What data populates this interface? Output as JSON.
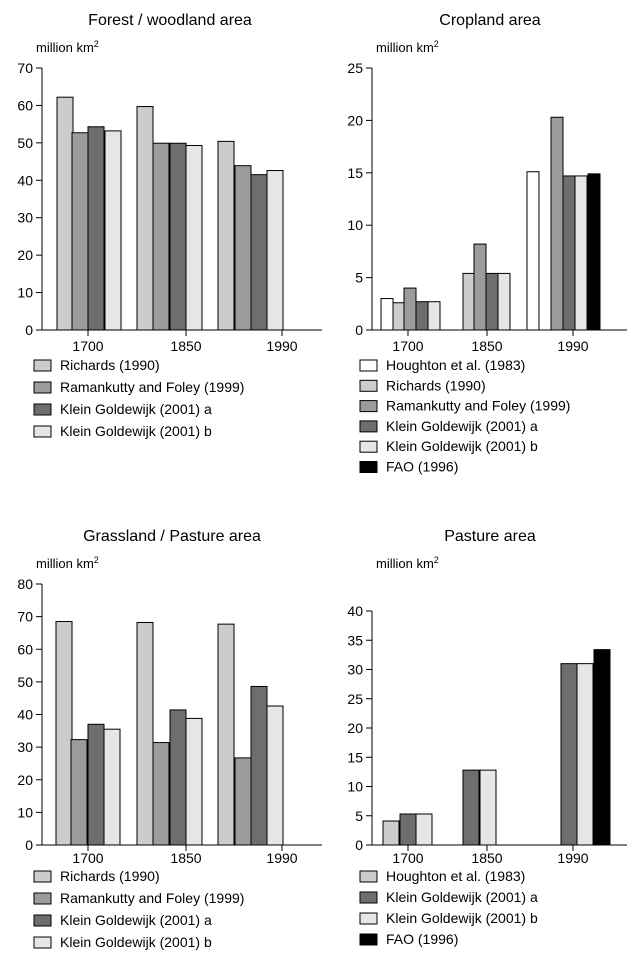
{
  "chart_data": [
    {
      "type": "bar",
      "title": "Forest / woodland area",
      "ylabel": "million km",
      "ylabel_sup": "2",
      "ylim": [
        0,
        70
      ],
      "yticks": [
        0,
        10,
        20,
        30,
        40,
        50,
        60,
        70
      ],
      "categories": [
        "1700",
        "1850",
        "1990"
      ],
      "grid": false,
      "legend_placement": "below",
      "series": [
        {
          "name": "Richards (1990)",
          "color": "#cccccc",
          "values": [
            62.2,
            59.7,
            50.4
          ]
        },
        {
          "name": "Ramankutty and Foley (1999)",
          "color": "#9c9c9c",
          "values": [
            52.7,
            49.9,
            43.9
          ]
        },
        {
          "name": "Klein Goldewijk (2001) a",
          "color": "#6e6e6e",
          "values": [
            54.3,
            49.9,
            41.5
          ]
        },
        {
          "name": "Klein Goldewijk (2001) b",
          "color": "#e6e6e6",
          "values": [
            53.2,
            49.3,
            42.6
          ]
        }
      ]
    },
    {
      "type": "bar",
      "title": "Cropland area",
      "ylabel": "million km",
      "ylabel_sup": "2",
      "ylim": [
        0,
        25
      ],
      "yticks": [
        0,
        5,
        10,
        15,
        20,
        25
      ],
      "categories": [
        "1700",
        "1850",
        "1990"
      ],
      "grid": false,
      "legend_placement": "below",
      "series": [
        {
          "name": "Houghton et al. (1983)",
          "color": "#ffffff",
          "values": [
            3.0,
            null,
            15.1
          ]
        },
        {
          "name": "Richards (1990)",
          "color": "#cccccc",
          "values": [
            2.6,
            5.4,
            null
          ]
        },
        {
          "name": "Ramankutty and Foley (1999)",
          "color": "#9c9c9c",
          "values": [
            4.0,
            8.2,
            20.3
          ]
        },
        {
          "name": "Klein Goldewijk (2001) a",
          "color": "#6e6e6e",
          "values": [
            2.7,
            5.4,
            14.7
          ]
        },
        {
          "name": "Klein Goldewijk (2001) b",
          "color": "#e6e6e6",
          "values": [
            2.7,
            5.4,
            14.7
          ]
        },
        {
          "name": "FAO (1996)",
          "color": "#000000",
          "values": [
            null,
            null,
            14.9
          ]
        }
      ]
    },
    {
      "type": "bar",
      "title": "Grassland / Pasture area",
      "ylabel": "million km",
      "ylabel_sup": "2",
      "ylim": [
        0,
        80
      ],
      "yticks": [
        0,
        10,
        20,
        30,
        40,
        50,
        60,
        70,
        80
      ],
      "categories": [
        "1700",
        "1850",
        "1990"
      ],
      "grid": false,
      "legend_placement": "below",
      "series": [
        {
          "name": "Richards (1990)",
          "color": "#cccccc",
          "values": [
            68.5,
            68.2,
            67.7
          ]
        },
        {
          "name": "Ramankutty and Foley (1999)",
          "color": "#9c9c9c",
          "values": [
            32.3,
            31.4,
            26.7
          ]
        },
        {
          "name": "Klein Goldewijk (2001) a",
          "color": "#6e6e6e",
          "values": [
            37.0,
            41.4,
            48.6
          ]
        },
        {
          "name": "Klein Goldewijk (2001) b",
          "color": "#e6e6e6",
          "values": [
            35.5,
            38.8,
            42.6
          ]
        }
      ]
    },
    {
      "type": "bar",
      "title": "Pasture area",
      "ylabel": "million km",
      "ylabel_sup": "2",
      "ylim": [
        0,
        40
      ],
      "yticks": [
        0,
        5,
        10,
        15,
        20,
        25,
        30,
        35,
        40
      ],
      "categories": [
        "1700",
        "1850",
        "1990"
      ],
      "grid": false,
      "legend_placement": "below",
      "series": [
        {
          "name": "Houghton et al. (1983)",
          "color": "#cccccc",
          "values": [
            4.1,
            null,
            null
          ]
        },
        {
          "name": "Klein Goldewijk (2001) a",
          "color": "#6e6e6e",
          "values": [
            5.3,
            12.8,
            31.0
          ]
        },
        {
          "name": "Klein Goldewijk (2001) b",
          "color": "#e6e6e6",
          "values": [
            5.3,
            12.8,
            31.0
          ]
        },
        {
          "name": "FAO (1996)",
          "color": "#000000",
          "values": [
            null,
            null,
            33.4
          ]
        }
      ]
    }
  ]
}
